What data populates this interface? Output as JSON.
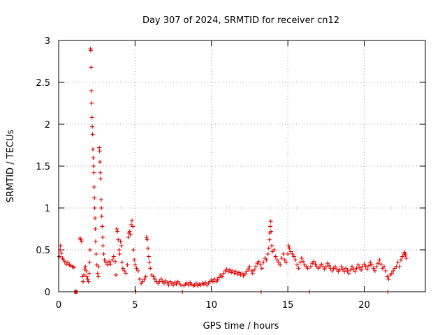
{
  "chart_data": {
    "type": "scatter",
    "title": "Day 307 of 2024, SRMTID for receiver cn12",
    "xlabel": "GPS time / hours",
    "ylabel": "SRMTID / TECUs",
    "xlim": [
      0,
      24
    ],
    "ylim": [
      0,
      3
    ],
    "xticks": [
      0,
      5,
      10,
      15,
      20
    ],
    "yticks": [
      0,
      0.5,
      1,
      1.5,
      2,
      2.5,
      3
    ],
    "xtick_labels": [
      "0",
      "5",
      "10",
      "15",
      "20"
    ],
    "ytick_labels": [
      "0",
      "0.5",
      "1",
      "1.5",
      "2",
      "2.5",
      "3"
    ],
    "grid": true,
    "marker": "+",
    "color": "#e00000",
    "series": [
      {
        "name": "cn12",
        "points": [
          [
            0.05,
            0.42
          ],
          [
            0.1,
            0.5
          ],
          [
            0.12,
            0.55
          ],
          [
            0.18,
            0.46
          ],
          [
            0.25,
            0.4
          ],
          [
            0.3,
            0.38
          ],
          [
            0.4,
            0.36
          ],
          [
            0.5,
            0.33
          ],
          [
            0.6,
            0.35
          ],
          [
            0.7,
            0.32
          ],
          [
            0.8,
            0.31
          ],
          [
            0.9,
            0.3
          ],
          [
            1.0,
            0.29
          ],
          [
            1.05,
            0.0
          ],
          [
            1.1,
            0.0
          ],
          [
            1.15,
            0.0
          ],
          [
            1.2,
            0.0
          ],
          [
            1.4,
            0.64
          ],
          [
            1.45,
            0.62
          ],
          [
            1.5,
            0.6
          ],
          [
            1.55,
            0.18
          ],
          [
            1.6,
            0.12
          ],
          [
            1.65,
            0.2
          ],
          [
            1.7,
            0.27
          ],
          [
            1.75,
            0.3
          ],
          [
            1.8,
            0.25
          ],
          [
            1.85,
            0.18
          ],
          [
            1.9,
            0.15
          ],
          [
            1.95,
            0.12
          ],
          [
            2.0,
            0.22
          ],
          [
            2.02,
            0.35
          ],
          [
            2.05,
            0.5
          ],
          [
            2.08,
            2.9
          ],
          [
            2.1,
            2.88
          ],
          [
            2.12,
            2.68
          ],
          [
            2.14,
            2.4
          ],
          [
            2.16,
            2.25
          ],
          [
            2.18,
            2.08
          ],
          [
            2.2,
            1.97
          ],
          [
            2.22,
            1.88
          ],
          [
            2.24,
            1.7
          ],
          [
            2.26,
            1.6
          ],
          [
            2.28,
            1.5
          ],
          [
            2.3,
            1.42
          ],
          [
            2.32,
            1.25
          ],
          [
            2.34,
            1.12
          ],
          [
            2.36,
            1.0
          ],
          [
            2.38,
            0.88
          ],
          [
            2.4,
            0.75
          ],
          [
            2.42,
            0.6
          ],
          [
            2.45,
            0.45
          ],
          [
            2.5,
            0.32
          ],
          [
            2.55,
            0.22
          ],
          [
            2.6,
            0.18
          ],
          [
            2.62,
            0.3
          ],
          [
            2.65,
            1.72
          ],
          [
            2.68,
            1.68
          ],
          [
            2.7,
            1.55
          ],
          [
            2.72,
            1.42
          ],
          [
            2.75,
            1.35
          ],
          [
            2.78,
            1.1
          ],
          [
            2.8,
            1.0
          ],
          [
            2.82,
            0.9
          ],
          [
            2.85,
            0.78
          ],
          [
            2.88,
            0.65
          ],
          [
            2.9,
            0.55
          ],
          [
            2.95,
            0.45
          ],
          [
            3.0,
            0.38
          ],
          [
            3.1,
            0.35
          ],
          [
            3.2,
            0.32
          ],
          [
            3.3,
            0.36
          ],
          [
            3.4,
            0.33
          ],
          [
            3.5,
            0.38
          ],
          [
            3.6,
            0.42
          ],
          [
            3.7,
            0.36
          ],
          [
            3.75,
            0.2
          ],
          [
            3.8,
            0.75
          ],
          [
            3.85,
            0.72
          ],
          [
            3.9,
            0.62
          ],
          [
            3.95,
            0.5
          ],
          [
            4.0,
            0.45
          ],
          [
            4.05,
            0.6
          ],
          [
            4.1,
            0.55
          ],
          [
            4.15,
            0.35
          ],
          [
            4.2,
            0.28
          ],
          [
            4.3,
            0.25
          ],
          [
            4.4,
            0.22
          ],
          [
            4.5,
            0.32
          ],
          [
            4.55,
            0.65
          ],
          [
            4.6,
            0.7
          ],
          [
            4.65,
            0.72
          ],
          [
            4.7,
            0.68
          ],
          [
            4.75,
            0.8
          ],
          [
            4.8,
            0.85
          ],
          [
            4.85,
            0.78
          ],
          [
            4.9,
            0.5
          ],
          [
            4.95,
            0.38
          ],
          [
            5.0,
            0.32
          ],
          [
            5.05,
            0.0
          ],
          [
            5.1,
            0.28
          ],
          [
            5.2,
            0.25
          ],
          [
            5.3,
            0.15
          ],
          [
            5.4,
            0.1
          ],
          [
            5.5,
            0.12
          ],
          [
            5.6,
            0.15
          ],
          [
            5.7,
            0.18
          ],
          [
            5.75,
            0.65
          ],
          [
            5.8,
            0.62
          ],
          [
            5.85,
            0.52
          ],
          [
            5.9,
            0.42
          ],
          [
            5.95,
            0.35
          ],
          [
            6.0,
            0.28
          ],
          [
            6.1,
            0.2
          ],
          [
            6.2,
            0.18
          ],
          [
            6.3,
            0.15
          ],
          [
            6.4,
            0.12
          ],
          [
            6.5,
            0.1
          ],
          [
            6.6,
            0.12
          ],
          [
            6.7,
            0.15
          ],
          [
            6.8,
            0.12
          ],
          [
            6.9,
            0.1
          ],
          [
            7.0,
            0.13
          ],
          [
            7.1,
            0.11
          ],
          [
            7.2,
            0.08
          ],
          [
            7.3,
            0.12
          ],
          [
            7.4,
            0.1
          ],
          [
            7.5,
            0.08
          ],
          [
            7.6,
            0.11
          ],
          [
            7.7,
            0.09
          ],
          [
            7.8,
            0.12
          ],
          [
            7.9,
            0.1
          ],
          [
            8.0,
            0.08
          ],
          [
            8.1,
            0.0
          ],
          [
            8.2,
            0.07
          ],
          [
            8.3,
            0.09
          ],
          [
            8.4,
            0.1
          ],
          [
            8.5,
            0.08
          ],
          [
            8.6,
            0.11
          ],
          [
            8.7,
            0.09
          ],
          [
            8.8,
            0.07
          ],
          [
            8.9,
            0.08
          ],
          [
            9.0,
            0.1
          ],
          [
            9.1,
            0.07
          ],
          [
            9.2,
            0.09
          ],
          [
            9.3,
            0.08
          ],
          [
            9.4,
            0.1
          ],
          [
            9.5,
            0.09
          ],
          [
            9.6,
            0.11
          ],
          [
            9.7,
            0.08
          ],
          [
            9.8,
            0.1
          ],
          [
            9.9,
            0.12
          ],
          [
            10.0,
            0.14
          ],
          [
            10.1,
            0.12
          ],
          [
            10.2,
            0.15
          ],
          [
            10.3,
            0.12
          ],
          [
            10.4,
            0.14
          ],
          [
            10.5,
            0.17
          ],
          [
            10.6,
            0.2
          ],
          [
            10.7,
            0.18
          ],
          [
            10.8,
            0.22
          ],
          [
            10.9,
            0.25
          ],
          [
            11.0,
            0.27
          ],
          [
            11.1,
            0.24
          ],
          [
            11.2,
            0.26
          ],
          [
            11.3,
            0.23
          ],
          [
            11.4,
            0.25
          ],
          [
            11.5,
            0.22
          ],
          [
            11.6,
            0.24
          ],
          [
            11.7,
            0.21
          ],
          [
            11.8,
            0.23
          ],
          [
            11.9,
            0.2
          ],
          [
            12.0,
            0.22
          ],
          [
            12.1,
            0.19
          ],
          [
            12.2,
            0.21
          ],
          [
            12.3,
            0.24
          ],
          [
            12.4,
            0.27
          ],
          [
            12.5,
            0.3
          ],
          [
            12.6,
            0.25
          ],
          [
            12.7,
            0.22
          ],
          [
            12.8,
            0.26
          ],
          [
            12.9,
            0.3
          ],
          [
            13.0,
            0.34
          ],
          [
            13.1,
            0.36
          ],
          [
            13.2,
            0.32
          ],
          [
            13.25,
            0.0
          ],
          [
            13.3,
            0.28
          ],
          [
            13.4,
            0.35
          ],
          [
            13.5,
            0.4
          ],
          [
            13.6,
            0.38
          ],
          [
            13.7,
            0.45
          ],
          [
            13.75,
            0.52
          ],
          [
            13.8,
            0.62
          ],
          [
            13.82,
            0.7
          ],
          [
            13.85,
            0.78
          ],
          [
            13.88,
            0.84
          ],
          [
            13.9,
            0.72
          ],
          [
            13.95,
            0.55
          ],
          [
            14.0,
            0.48
          ],
          [
            14.1,
            0.5
          ],
          [
            14.2,
            0.42
          ],
          [
            14.3,
            0.38
          ],
          [
            14.4,
            0.35
          ],
          [
            14.5,
            0.32
          ],
          [
            14.6,
            0.4
          ],
          [
            14.7,
            0.45
          ],
          [
            14.8,
            0.38
          ],
          [
            14.9,
            0.35
          ],
          [
            15.0,
            0.45
          ],
          [
            15.05,
            0.55
          ],
          [
            15.1,
            0.52
          ],
          [
            15.2,
            0.48
          ],
          [
            15.3,
            0.45
          ],
          [
            15.4,
            0.42
          ],
          [
            15.5,
            0.38
          ],
          [
            15.6,
            0.32
          ],
          [
            15.7,
            0.28
          ],
          [
            15.8,
            0.35
          ],
          [
            15.9,
            0.4
          ],
          [
            16.0,
            0.36
          ],
          [
            16.1,
            0.32
          ],
          [
            16.2,
            0.3
          ],
          [
            16.3,
            0.28
          ],
          [
            16.4,
            0.0
          ],
          [
            16.5,
            0.3
          ],
          [
            16.6,
            0.34
          ],
          [
            16.7,
            0.36
          ],
          [
            16.8,
            0.33
          ],
          [
            16.9,
            0.3
          ],
          [
            17.0,
            0.28
          ],
          [
            17.1,
            0.3
          ],
          [
            17.2,
            0.33
          ],
          [
            17.3,
            0.3
          ],
          [
            17.4,
            0.27
          ],
          [
            17.5,
            0.3
          ],
          [
            17.6,
            0.34
          ],
          [
            17.7,
            0.31
          ],
          [
            17.8,
            0.28
          ],
          [
            17.9,
            0.25
          ],
          [
            18.0,
            0.28
          ],
          [
            18.1,
            0.3
          ],
          [
            18.2,
            0.27
          ],
          [
            18.3,
            0.24
          ],
          [
            18.4,
            0.26
          ],
          [
            18.5,
            0.3
          ],
          [
            18.6,
            0.27
          ],
          [
            18.7,
            0.24
          ],
          [
            18.8,
            0.28
          ],
          [
            18.9,
            0.25
          ],
          [
            19.0,
            0.22
          ],
          [
            19.1,
            0.26
          ],
          [
            19.2,
            0.3
          ],
          [
            19.3,
            0.27
          ],
          [
            19.4,
            0.24
          ],
          [
            19.5,
            0.28
          ],
          [
            19.6,
            0.32
          ],
          [
            19.7,
            0.29
          ],
          [
            19.8,
            0.26
          ],
          [
            19.9,
            0.3
          ],
          [
            20.0,
            0.33
          ],
          [
            20.1,
            0.3
          ],
          [
            20.2,
            0.27
          ],
          [
            20.3,
            0.31
          ],
          [
            20.4,
            0.35
          ],
          [
            20.5,
            0.32
          ],
          [
            20.6,
            0.28
          ],
          [
            20.7,
            0.25
          ],
          [
            20.8,
            0.3
          ],
          [
            20.9,
            0.34
          ],
          [
            21.0,
            0.38
          ],
          [
            21.1,
            0.33
          ],
          [
            21.2,
            0.28
          ],
          [
            21.3,
            0.3
          ],
          [
            21.4,
            0.25
          ],
          [
            21.5,
            0.18
          ],
          [
            21.55,
            0.0
          ],
          [
            21.6,
            0.15
          ],
          [
            21.7,
            0.2
          ],
          [
            21.8,
            0.22
          ],
          [
            21.9,
            0.25
          ],
          [
            22.0,
            0.28
          ],
          [
            22.1,
            0.3
          ],
          [
            22.2,
            0.35
          ],
          [
            22.3,
            0.3
          ],
          [
            22.4,
            0.38
          ],
          [
            22.5,
            0.42
          ],
          [
            22.6,
            0.45
          ],
          [
            22.65,
            0.47
          ],
          [
            22.7,
            0.44
          ],
          [
            22.75,
            0.4
          ]
        ]
      }
    ]
  }
}
